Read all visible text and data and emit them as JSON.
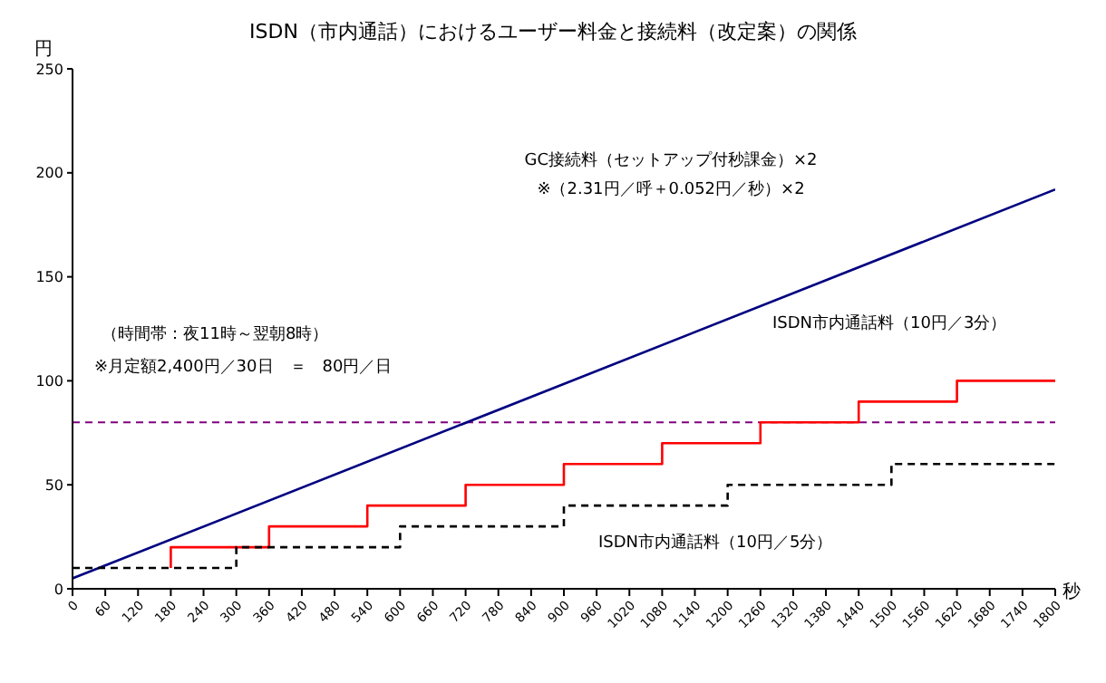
{
  "chart_data": {
    "type": "line",
    "title": "ISDN（市内通話）におけるユーザー料金と接続料（改定案）の関係",
    "ylabel": "円",
    "xlabel": "秒",
    "series": [
      {
        "color": "#000080",
        "x": [
          0,
          1800
        ],
        "values": [
          5,
          192
        ],
        "line_style": "solid"
      },
      {
        "type": "step",
        "color": "#ff0000",
        "x": [
          180,
          180,
          360,
          540,
          720,
          900,
          1080,
          1260,
          1440,
          1620,
          1800
        ],
        "values": [
          10,
          20,
          30,
          40,
          50,
          60,
          70,
          80,
          90,
          100,
          100
        ],
        "line_style": "solid"
      },
      {
        "type": "step",
        "color": "#000000",
        "x": [
          0,
          300,
          600,
          900,
          1200,
          1500,
          1800
        ],
        "values": [
          10,
          20,
          30,
          40,
          50,
          60,
          60
        ],
        "line_style": "dashed"
      }
    ],
    "ref_lines": [
      {
        "axis": "y",
        "value": 80,
        "color": "#800080",
        "line_style": "dashed"
      }
    ],
    "annotations": [
      "GC接続料（セットアップ付秒課金）×2",
      "※（2.31円／呼＋0.052円／秒）×2",
      "（時間帯：夜11時～翌朝8時）",
      "※月定額2,400円／30日　＝　80円／日",
      "ISDN市内通話料（10円／3分）",
      "ISDN市内通話料（10円／5分）"
    ],
    "xlim": [
      0,
      1800
    ],
    "xticks": [
      0,
      60,
      120,
      180,
      240,
      300,
      360,
      420,
      480,
      540,
      600,
      660,
      720,
      780,
      840,
      900,
      960,
      1020,
      1080,
      1140,
      1200,
      1260,
      1320,
      1380,
      1440,
      1500,
      1560,
      1620,
      1680,
      1740,
      1800
    ],
    "ylim": [
      0,
      250
    ],
    "yticks": [
      0,
      50,
      100,
      150,
      200,
      250
    ],
    "grid": false,
    "legend": false
  }
}
